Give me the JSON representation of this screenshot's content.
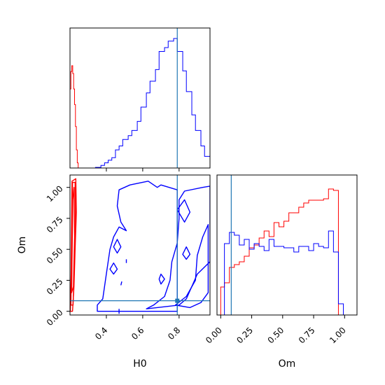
{
  "chart_data": {
    "type": "corner",
    "parameters": [
      "H0",
      "Om"
    ],
    "truths": {
      "H0": 0.79,
      "Om": 0.085
    },
    "colors": {
      "series_a": "#ff0000",
      "series_b": "#0000ff",
      "truth": "#1f77b4",
      "axes": "#000000"
    },
    "grid": false,
    "legend": "none",
    "panels": [
      {
        "name": "H0-marginal",
        "type": "histogram",
        "xlim": [
          0.2,
          0.97
        ],
        "xticks": [
          0.4,
          0.6,
          0.8
        ],
        "show_tick_labels": false,
        "series": [
          {
            "color": "red",
            "bins": [
              [
                0.2,
                0.61
              ],
              [
                0.205,
                0.745
              ],
              [
                0.21,
                0.79
              ],
              [
                0.215,
                0.73
              ],
              [
                0.22,
                0.61
              ],
              [
                0.225,
                0.49
              ],
              [
                0.23,
                0.32
              ],
              [
                0.235,
                0.14
              ],
              [
                0.24,
                0.04
              ],
              [
                0.245,
                0.0
              ]
            ]
          },
          {
            "color": "blue",
            "bins": [
              [
                0.2,
                0.0
              ],
              [
                0.34,
                0.005
              ],
              [
                0.37,
                0.02
              ],
              [
                0.39,
                0.04
              ],
              [
                0.41,
                0.06
              ],
              [
                0.43,
                0.08
              ],
              [
                0.45,
                0.14
              ],
              [
                0.47,
                0.17
              ],
              [
                0.49,
                0.22
              ],
              [
                0.52,
                0.25
              ],
              [
                0.54,
                0.29
              ],
              [
                0.57,
                0.36
              ],
              [
                0.59,
                0.47
              ],
              [
                0.62,
                0.58
              ],
              [
                0.64,
                0.67
              ],
              [
                0.67,
                0.76
              ],
              [
                0.69,
                0.9
              ],
              [
                0.72,
                0.93
              ],
              [
                0.74,
                0.98
              ],
              [
                0.77,
                1.0
              ],
              [
                0.79,
                0.9
              ],
              [
                0.82,
                0.75
              ],
              [
                0.84,
                0.59
              ],
              [
                0.87,
                0.41
              ],
              [
                0.89,
                0.29
              ],
              [
                0.92,
                0.17
              ],
              [
                0.94,
                0.09
              ],
              [
                0.97,
                0.0
              ]
            ]
          }
        ]
      },
      {
        "name": "H0-Om-joint",
        "type": "contour",
        "xlim": [
          0.2,
          0.97
        ],
        "ylim": [
          -0.03,
          1.1
        ],
        "xlabel": "H0",
        "ylabel": "Om",
        "xticks": [
          "0.4",
          "0.6",
          "0.8"
        ],
        "yticks": [
          "0.00",
          "0.25",
          "0.50",
          "0.75",
          "1.00"
        ],
        "contours": [
          {
            "color": "red",
            "level": "outer",
            "points": [
              [
                0.202,
                0.0
              ],
              [
                0.206,
                0.3
              ],
              [
                0.208,
                0.6
              ],
              [
                0.211,
                1.05
              ],
              [
                0.232,
                1.07
              ],
              [
                0.235,
                0.8
              ],
              [
                0.228,
                0.5
              ],
              [
                0.222,
                0.2
              ],
              [
                0.214,
                0.0
              ]
            ]
          },
          {
            "color": "red",
            "level": "mid",
            "points": [
              [
                0.205,
                0.05
              ],
              [
                0.208,
                0.4
              ],
              [
                0.212,
                0.8
              ],
              [
                0.214,
                1.04
              ],
              [
                0.228,
                1.04
              ],
              [
                0.23,
                0.7
              ],
              [
                0.224,
                0.35
              ],
              [
                0.217,
                0.05
              ]
            ]
          },
          {
            "color": "red",
            "level": "inner",
            "points": [
              [
                0.209,
                0.15
              ],
              [
                0.212,
                0.5
              ],
              [
                0.215,
                0.9
              ],
              [
                0.222,
                1.0
              ],
              [
                0.225,
                0.6
              ],
              [
                0.219,
                0.2
              ]
            ]
          },
          {
            "color": "blue",
            "level": "outer-left",
            "points": [
              [
                0.35,
                0.0
              ],
              [
                0.35,
                0.05
              ],
              [
                0.38,
                0.1
              ],
              [
                0.4,
                0.3
              ],
              [
                0.42,
                0.5
              ],
              [
                0.44,
                0.6
              ],
              [
                0.47,
                0.68
              ],
              [
                0.51,
                0.65
              ],
              [
                0.48,
                0.72
              ],
              [
                0.46,
                0.85
              ],
              [
                0.47,
                0.98
              ],
              [
                0.53,
                1.02
              ],
              [
                0.63,
                1.05
              ],
              [
                0.68,
                1.0
              ],
              [
                0.7,
                1.02
              ],
              [
                0.79,
                0.98
              ],
              [
                0.79,
                0.0
              ]
            ]
          },
          {
            "color": "blue",
            "level": "outer-right",
            "points": [
              [
                0.62,
                0.02
              ],
              [
                0.66,
                0.05
              ],
              [
                0.72,
                0.12
              ],
              [
                0.75,
                0.25
              ],
              [
                0.76,
                0.4
              ],
              [
                0.79,
                0.55
              ],
              [
                0.8,
                0.75
              ],
              [
                0.8,
                0.9
              ],
              [
                0.83,
                0.97
              ],
              [
                0.93,
                1.0
              ],
              [
                0.97,
                1.01
              ],
              [
                0.97,
                0.4
              ],
              [
                0.9,
                0.3
              ],
              [
                0.84,
                0.1
              ],
              [
                0.8,
                0.05
              ],
              [
                0.62,
                0.02
              ]
            ]
          },
          {
            "color": "blue",
            "level": "inner-right",
            "points": [
              [
                0.78,
                0.05
              ],
              [
                0.84,
                0.12
              ],
              [
                0.89,
                0.25
              ],
              [
                0.9,
                0.45
              ],
              [
                0.93,
                0.6
              ],
              [
                0.96,
                0.7
              ],
              [
                0.96,
                0.15
              ],
              [
                0.92,
                0.07
              ],
              [
                0.86,
                0.03
              ],
              [
                0.78,
                0.05
              ]
            ]
          },
          {
            "color": "blue",
            "level": "island",
            "points": [
              [
                0.79,
                0.82
              ],
              [
                0.83,
                0.9
              ],
              [
                0.86,
                0.8
              ],
              [
                0.83,
                0.72
              ],
              [
                0.79,
                0.82
              ]
            ]
          },
          {
            "color": "blue",
            "level": "island",
            "points": [
              [
                0.82,
                0.46
              ],
              [
                0.84,
                0.52
              ],
              [
                0.86,
                0.46
              ],
              [
                0.84,
                0.42
              ]
            ]
          },
          {
            "color": "blue",
            "level": "island",
            "points": [
              [
                0.44,
                0.52
              ],
              [
                0.46,
                0.58
              ],
              [
                0.48,
                0.52
              ],
              [
                0.46,
                0.47
              ]
            ]
          },
          {
            "color": "blue",
            "level": "island",
            "points": [
              [
                0.42,
                0.34
              ],
              [
                0.44,
                0.39
              ],
              [
                0.46,
                0.34
              ],
              [
                0.44,
                0.3
              ]
            ]
          },
          {
            "color": "blue",
            "level": "island",
            "points": [
              [
                0.69,
                0.26
              ],
              [
                0.7,
                0.3
              ],
              [
                0.72,
                0.26
              ],
              [
                0.7,
                0.22
              ]
            ]
          },
          {
            "color": "blue",
            "level": "tick",
            "points": [
              [
                0.47,
                -0.02
              ],
              [
                0.47,
                0.02
              ]
            ]
          },
          {
            "color": "blue",
            "level": "tick",
            "points": [
              [
                0.51,
                0.39
              ],
              [
                0.51,
                0.42
              ]
            ]
          },
          {
            "color": "blue",
            "level": "tick",
            "points": [
              [
                0.48,
                0.21
              ],
              [
                0.485,
                0.24
              ]
            ]
          }
        ]
      },
      {
        "name": "Om-marginal",
        "type": "histogram",
        "xlim": [
          -0.03,
          1.1
        ],
        "xlabel": "Om",
        "xticks": [
          "0.00",
          "0.25",
          "0.50",
          "0.75",
          "1.00"
        ],
        "series": [
          {
            "color": "red",
            "bins": [
              [
                0.0,
                0.2
              ],
              [
                0.03,
                0.23
              ],
              [
                0.07,
                0.34
              ],
              [
                0.11,
                0.36
              ],
              [
                0.15,
                0.38
              ],
              [
                0.19,
                0.42
              ],
              [
                0.23,
                0.48
              ],
              [
                0.27,
                0.5
              ],
              [
                0.31,
                0.55
              ],
              [
                0.35,
                0.6
              ],
              [
                0.39,
                0.56
              ],
              [
                0.43,
                0.66
              ],
              [
                0.47,
                0.63
              ],
              [
                0.51,
                0.67
              ],
              [
                0.55,
                0.73
              ],
              [
                0.59,
                0.73
              ],
              [
                0.63,
                0.77
              ],
              [
                0.67,
                0.8
              ],
              [
                0.71,
                0.82
              ],
              [
                0.75,
                0.82
              ],
              [
                0.79,
                0.82
              ],
              [
                0.83,
                0.83
              ],
              [
                0.87,
                0.9
              ],
              [
                0.91,
                0.89
              ],
              [
                0.95,
                0.0
              ]
            ]
          },
          {
            "color": "blue",
            "bins": [
              [
                0.0,
                0.0
              ],
              [
                0.03,
                0.51
              ],
              [
                0.07,
                0.59
              ],
              [
                0.11,
                0.57
              ],
              [
                0.15,
                0.5
              ],
              [
                0.19,
                0.54
              ],
              [
                0.23,
                0.47
              ],
              [
                0.27,
                0.51
              ],
              [
                0.31,
                0.49
              ],
              [
                0.35,
                0.46
              ],
              [
                0.39,
                0.54
              ],
              [
                0.43,
                0.49
              ],
              [
                0.47,
                0.49
              ],
              [
                0.51,
                0.48
              ],
              [
                0.55,
                0.48
              ],
              [
                0.59,
                0.45
              ],
              [
                0.63,
                0.49
              ],
              [
                0.67,
                0.49
              ],
              [
                0.71,
                0.46
              ],
              [
                0.75,
                0.51
              ],
              [
                0.79,
                0.49
              ],
              [
                0.83,
                0.48
              ],
              [
                0.87,
                0.6
              ],
              [
                0.91,
                0.45
              ],
              [
                0.95,
                0.08
              ],
              [
                0.99,
                0.0
              ]
            ]
          }
        ]
      }
    ]
  }
}
